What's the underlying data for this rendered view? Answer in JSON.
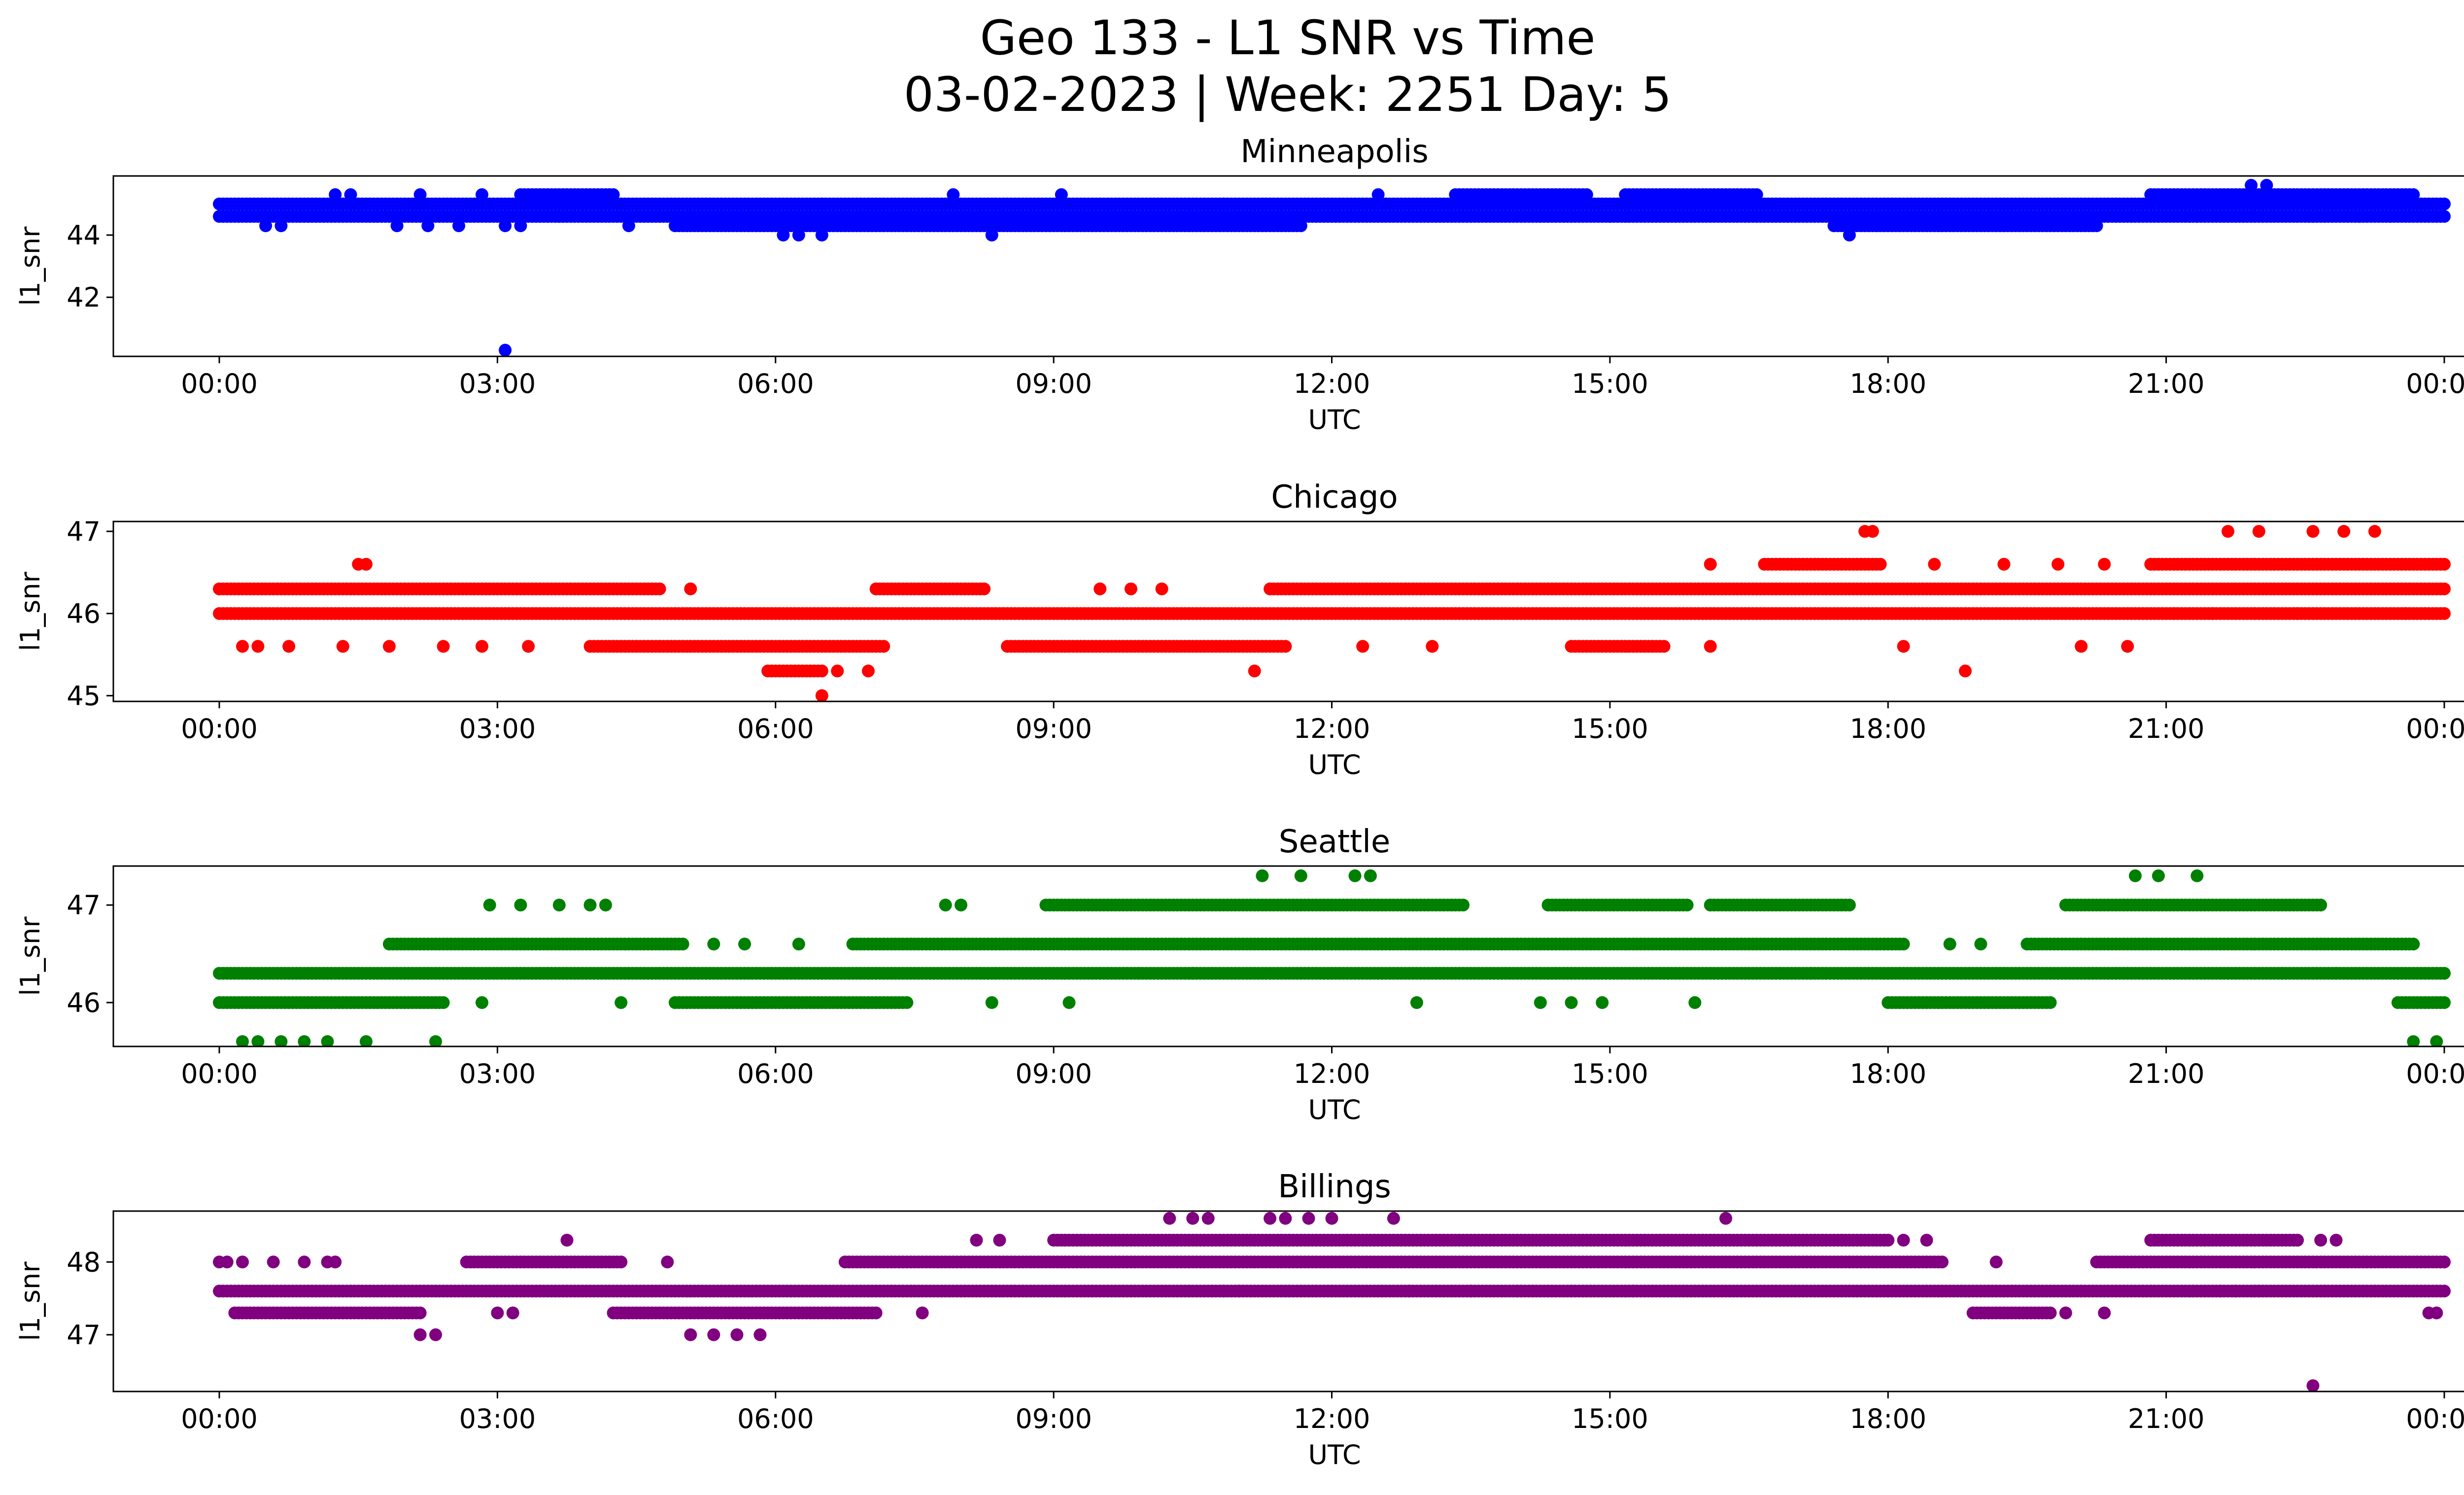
{
  "figure": {
    "title_line1": "Geo 133 - L1 SNR vs Time",
    "title_line2": "03-02-2023 | Week: 2251 Day: 5"
  },
  "chart_data": [
    {
      "type": "scatter",
      "title": "Minneapolis",
      "xlabel": "UTC",
      "ylabel": "l1_snr",
      "color": "#0000ff",
      "xlim": [
        "00:00",
        "00:00"
      ],
      "x_ticks": [
        "00:00",
        "03:00",
        "06:00",
        "09:00",
        "12:00",
        "15:00",
        "18:00",
        "21:00",
        "00:00"
      ],
      "ylim": [
        40.1,
        45.9
      ],
      "y_ticks": [
        42,
        44
      ],
      "bands": [
        {
          "y": 45.0,
          "start": "00:00",
          "end": "24:00"
        },
        {
          "y": 44.6,
          "start": "00:00",
          "end": "24:00"
        },
        {
          "y": 44.3,
          "start": "04:55",
          "end": "11:40"
        },
        {
          "y": 44.3,
          "start": "17:25",
          "end": "20:15"
        },
        {
          "y": 45.3,
          "start": "03:15",
          "end": "04:15"
        },
        {
          "y": 45.3,
          "start": "13:20",
          "end": "14:45"
        },
        {
          "y": 45.3,
          "start": "15:10",
          "end": "16:35"
        },
        {
          "y": 45.3,
          "start": "20:50",
          "end": "23:40"
        }
      ],
      "points": [
        {
          "x": "00:30",
          "y": 44.3
        },
        {
          "x": "00:40",
          "y": 44.3
        },
        {
          "x": "01:15",
          "y": 45.3
        },
        {
          "x": "01:25",
          "y": 45.3
        },
        {
          "x": "01:55",
          "y": 44.3
        },
        {
          "x": "02:10",
          "y": 45.3
        },
        {
          "x": "02:15",
          "y": 44.3
        },
        {
          "x": "02:35",
          "y": 44.3
        },
        {
          "x": "02:50",
          "y": 45.3
        },
        {
          "x": "03:05",
          "y": 44.3
        },
        {
          "x": "03:15",
          "y": 44.3
        },
        {
          "x": "03:40",
          "y": 44.6
        },
        {
          "x": "04:25",
          "y": 44.3
        },
        {
          "x": "06:05",
          "y": 44.0
        },
        {
          "x": "06:15",
          "y": 44.0
        },
        {
          "x": "06:30",
          "y": 44.0
        },
        {
          "x": "06:30",
          "y": 45.0
        },
        {
          "x": "07:55",
          "y": 45.3
        },
        {
          "x": "08:20",
          "y": 44.0
        },
        {
          "x": "09:05",
          "y": 45.3
        },
        {
          "x": "10:50",
          "y": 45.0
        },
        {
          "x": "12:30",
          "y": 45.3
        },
        {
          "x": "15:00",
          "y": 44.6
        },
        {
          "x": "17:35",
          "y": 44.0
        },
        {
          "x": "21:20",
          "y": 44.6
        },
        {
          "x": "21:55",
          "y": 45.6
        },
        {
          "x": "22:05",
          "y": 45.6
        },
        {
          "x": "22:35",
          "y": 44.6
        },
        {
          "x": "23:05",
          "y": 44.6
        },
        {
          "x": "23:25",
          "y": 44.6
        },
        {
          "x": "03:05",
          "y": 40.3
        }
      ]
    },
    {
      "type": "scatter",
      "title": "Chicago",
      "xlabel": "UTC",
      "ylabel": "l1_snr",
      "color": "#ff0000",
      "xlim": [
        "00:00",
        "00:00"
      ],
      "x_ticks": [
        "00:00",
        "03:00",
        "06:00",
        "09:00",
        "12:00",
        "15:00",
        "18:00",
        "21:00",
        "00:00"
      ],
      "ylim": [
        44.93,
        47.12
      ],
      "y_ticks": [
        45,
        46,
        47
      ],
      "bands": [
        {
          "y": 46.0,
          "start": "00:00",
          "end": "24:00"
        },
        {
          "y": 46.3,
          "start": "00:00",
          "end": "04:45"
        },
        {
          "y": 46.3,
          "start": "07:05",
          "end": "08:15"
        },
        {
          "y": 46.3,
          "start": "11:20",
          "end": "24:00"
        },
        {
          "y": 45.6,
          "start": "04:00",
          "end": "07:10"
        },
        {
          "y": 45.6,
          "start": "08:30",
          "end": "11:30"
        },
        {
          "y": 45.6,
          "start": "14:35",
          "end": "15:35"
        },
        {
          "y": 46.6,
          "start": "16:40",
          "end": "17:55"
        },
        {
          "y": 46.6,
          "start": "20:50",
          "end": "24:00"
        },
        {
          "y": 45.3,
          "start": "05:55",
          "end": "06:30"
        }
      ],
      "points": [
        {
          "x": "00:15",
          "y": 45.6
        },
        {
          "x": "00:25",
          "y": 45.6
        },
        {
          "x": "00:45",
          "y": 45.6
        },
        {
          "x": "01:20",
          "y": 45.6
        },
        {
          "x": "01:50",
          "y": 45.6
        },
        {
          "x": "02:25",
          "y": 45.6
        },
        {
          "x": "02:50",
          "y": 45.6
        },
        {
          "x": "03:20",
          "y": 45.6
        },
        {
          "x": "01:30",
          "y": 46.6
        },
        {
          "x": "01:35",
          "y": 46.6
        },
        {
          "x": "05:05",
          "y": 46.3
        },
        {
          "x": "06:30",
          "y": 45.0
        },
        {
          "x": "06:40",
          "y": 45.3
        },
        {
          "x": "07:00",
          "y": 45.3
        },
        {
          "x": "09:30",
          "y": 46.3
        },
        {
          "x": "09:50",
          "y": 46.3
        },
        {
          "x": "10:10",
          "y": 46.3
        },
        {
          "x": "11:10",
          "y": 45.3
        },
        {
          "x": "12:20",
          "y": 45.6
        },
        {
          "x": "13:05",
          "y": 45.6
        },
        {
          "x": "16:05",
          "y": 45.6
        },
        {
          "x": "16:05",
          "y": 46.6
        },
        {
          "x": "17:45",
          "y": 47.0
        },
        {
          "x": "17:50",
          "y": 47.0
        },
        {
          "x": "18:10",
          "y": 45.6
        },
        {
          "x": "18:50",
          "y": 45.3
        },
        {
          "x": "18:30",
          "y": 46.6
        },
        {
          "x": "19:15",
          "y": 46.6
        },
        {
          "x": "19:50",
          "y": 46.6
        },
        {
          "x": "20:20",
          "y": 46.6
        },
        {
          "x": "20:05",
          "y": 45.6
        },
        {
          "x": "20:35",
          "y": 45.6
        },
        {
          "x": "21:05",
          "y": 46.0
        },
        {
          "x": "21:30",
          "y": 46.0
        },
        {
          "x": "21:40",
          "y": 47.0
        },
        {
          "x": "22:00",
          "y": 47.0
        },
        {
          "x": "22:25",
          "y": 46.0
        },
        {
          "x": "22:35",
          "y": 47.0
        },
        {
          "x": "22:55",
          "y": 47.0
        },
        {
          "x": "23:15",
          "y": 47.0
        },
        {
          "x": "23:35",
          "y": 46.0
        }
      ]
    },
    {
      "type": "scatter",
      "title": "Seattle",
      "xlabel": "UTC",
      "ylabel": "l1_snr",
      "color": "#008000",
      "xlim": [
        "00:00",
        "00:00"
      ],
      "x_ticks": [
        "00:00",
        "03:00",
        "06:00",
        "09:00",
        "12:00",
        "15:00",
        "18:00",
        "21:00",
        "00:00"
      ],
      "ylim": [
        45.55,
        47.4
      ],
      "y_ticks": [
        46,
        47
      ],
      "bands": [
        {
          "y": 46.3,
          "start": "00:00",
          "end": "24:00"
        },
        {
          "y": 46.0,
          "start": "00:00",
          "end": "02:25"
        },
        {
          "y": 46.0,
          "start": "04:55",
          "end": "07:25"
        },
        {
          "y": 46.0,
          "start": "18:00",
          "end": "19:45"
        },
        {
          "y": 46.0,
          "start": "23:30",
          "end": "24:00"
        },
        {
          "y": 46.6,
          "start": "01:50",
          "end": "05:00"
        },
        {
          "y": 46.6,
          "start": "06:50",
          "end": "18:10"
        },
        {
          "y": 46.6,
          "start": "19:30",
          "end": "23:40"
        },
        {
          "y": 47.0,
          "start": "08:55",
          "end": "13:25"
        },
        {
          "y": 47.0,
          "start": "14:20",
          "end": "15:50"
        },
        {
          "y": 47.0,
          "start": "16:05",
          "end": "17:35"
        },
        {
          "y": 47.0,
          "start": "19:55",
          "end": "22:40"
        }
      ],
      "points": [
        {
          "x": "00:15",
          "y": 45.6
        },
        {
          "x": "00:25",
          "y": 45.6
        },
        {
          "x": "00:40",
          "y": 45.6
        },
        {
          "x": "00:55",
          "y": 45.6
        },
        {
          "x": "01:10",
          "y": 45.6
        },
        {
          "x": "01:35",
          "y": 45.6
        },
        {
          "x": "02:20",
          "y": 45.6
        },
        {
          "x": "02:50",
          "y": 46.0
        },
        {
          "x": "02:55",
          "y": 47.0
        },
        {
          "x": "03:15",
          "y": 47.0
        },
        {
          "x": "03:40",
          "y": 47.0
        },
        {
          "x": "04:00",
          "y": 47.0
        },
        {
          "x": "04:10",
          "y": 47.0
        },
        {
          "x": "04:20",
          "y": 46.0
        },
        {
          "x": "05:20",
          "y": 46.6
        },
        {
          "x": "05:40",
          "y": 46.6
        },
        {
          "x": "06:15",
          "y": 46.6
        },
        {
          "x": "07:50",
          "y": 47.0
        },
        {
          "x": "08:00",
          "y": 47.0
        },
        {
          "x": "08:20",
          "y": 46.0
        },
        {
          "x": "09:10",
          "y": 46.0
        },
        {
          "x": "09:55",
          "y": 46.3
        },
        {
          "x": "10:30",
          "y": 46.3
        },
        {
          "x": "11:15",
          "y": 47.3
        },
        {
          "x": "11:40",
          "y": 47.3
        },
        {
          "x": "12:15",
          "y": 47.3
        },
        {
          "x": "12:25",
          "y": 47.3
        },
        {
          "x": "12:55",
          "y": 46.0
        },
        {
          "x": "14:15",
          "y": 46.0
        },
        {
          "x": "14:35",
          "y": 46.0
        },
        {
          "x": "14:55",
          "y": 46.0
        },
        {
          "x": "15:55",
          "y": 46.0
        },
        {
          "x": "17:10",
          "y": 46.3
        },
        {
          "x": "18:40",
          "y": 46.6
        },
        {
          "x": "19:00",
          "y": 46.6
        },
        {
          "x": "20:40",
          "y": 47.3
        },
        {
          "x": "20:55",
          "y": 47.3
        },
        {
          "x": "21:20",
          "y": 47.3
        },
        {
          "x": "22:15",
          "y": 46.3
        },
        {
          "x": "22:50",
          "y": 46.3
        },
        {
          "x": "23:40",
          "y": 45.6
        },
        {
          "x": "23:55",
          "y": 45.6
        }
      ]
    },
    {
      "type": "scatter",
      "title": "Billings",
      "xlabel": "UTC",
      "ylabel": "l1_snr",
      "color": "#800080",
      "xlim": [
        "00:00",
        "00:00"
      ],
      "x_ticks": [
        "00:00",
        "03:00",
        "06:00",
        "09:00",
        "12:00",
        "15:00",
        "18:00",
        "21:00",
        "00:00"
      ],
      "ylim": [
        46.22,
        48.7
      ],
      "y_ticks": [
        47,
        48
      ],
      "bands": [
        {
          "y": 47.6,
          "start": "00:00",
          "end": "24:00"
        },
        {
          "y": 47.3,
          "start": "00:10",
          "end": "02:10"
        },
        {
          "y": 47.3,
          "start": "04:15",
          "end": "07:05"
        },
        {
          "y": 47.3,
          "start": "18:55",
          "end": "19:45"
        },
        {
          "y": 48.0,
          "start": "02:40",
          "end": "04:20"
        },
        {
          "y": 48.0,
          "start": "06:45",
          "end": "18:35"
        },
        {
          "y": 48.0,
          "start": "20:15",
          "end": "24:00"
        },
        {
          "y": 48.3,
          "start": "09:00",
          "end": "18:00"
        },
        {
          "y": 48.3,
          "start": "20:50",
          "end": "22:25"
        }
      ],
      "points": [
        {
          "x": "00:00",
          "y": 48.0
        },
        {
          "x": "00:05",
          "y": 48.0
        },
        {
          "x": "00:15",
          "y": 48.0
        },
        {
          "x": "00:35",
          "y": 48.0
        },
        {
          "x": "00:55",
          "y": 48.0
        },
        {
          "x": "01:10",
          "y": 48.0
        },
        {
          "x": "01:15",
          "y": 48.0
        },
        {
          "x": "02:10",
          "y": 47.0
        },
        {
          "x": "02:20",
          "y": 47.0
        },
        {
          "x": "03:00",
          "y": 47.3
        },
        {
          "x": "03:10",
          "y": 47.3
        },
        {
          "x": "03:45",
          "y": 48.3
        },
        {
          "x": "04:50",
          "y": 48.0
        },
        {
          "x": "05:05",
          "y": 47.0
        },
        {
          "x": "05:20",
          "y": 47.0
        },
        {
          "x": "05:35",
          "y": 47.0
        },
        {
          "x": "05:50",
          "y": 47.0
        },
        {
          "x": "07:35",
          "y": 47.3
        },
        {
          "x": "08:10",
          "y": 48.3
        },
        {
          "x": "08:25",
          "y": 48.3
        },
        {
          "x": "10:15",
          "y": 48.6
        },
        {
          "x": "10:30",
          "y": 48.6
        },
        {
          "x": "10:40",
          "y": 48.6
        },
        {
          "x": "11:20",
          "y": 48.6
        },
        {
          "x": "11:30",
          "y": 48.6
        },
        {
          "x": "11:45",
          "y": 48.6
        },
        {
          "x": "12:00",
          "y": 48.6
        },
        {
          "x": "12:40",
          "y": 48.6
        },
        {
          "x": "10:50",
          "y": 47.6
        },
        {
          "x": "11:00",
          "y": 47.6
        },
        {
          "x": "12:50",
          "y": 47.6
        },
        {
          "x": "13:30",
          "y": 47.6
        },
        {
          "x": "14:00",
          "y": 47.6
        },
        {
          "x": "15:15",
          "y": 47.6
        },
        {
          "x": "16:15",
          "y": 48.6
        },
        {
          "x": "18:00",
          "y": 47.6
        },
        {
          "x": "18:10",
          "y": 48.3
        },
        {
          "x": "18:25",
          "y": 48.3
        },
        {
          "x": "19:10",
          "y": 48.0
        },
        {
          "x": "19:55",
          "y": 47.3
        },
        {
          "x": "20:20",
          "y": 47.3
        },
        {
          "x": "21:35",
          "y": 47.6
        },
        {
          "x": "21:45",
          "y": 47.6
        },
        {
          "x": "22:00",
          "y": 47.6
        },
        {
          "x": "22:35",
          "y": 46.3
        },
        {
          "x": "22:40",
          "y": 48.3
        },
        {
          "x": "22:50",
          "y": 48.3
        },
        {
          "x": "23:50",
          "y": 47.3
        },
        {
          "x": "23:55",
          "y": 47.3
        }
      ]
    }
  ]
}
